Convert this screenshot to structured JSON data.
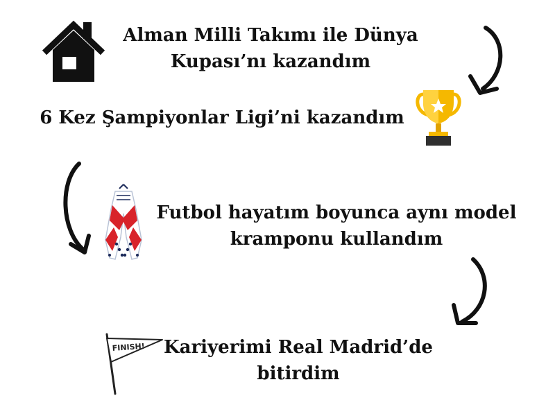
{
  "steps": [
    {
      "icon": "house-icon",
      "lines": [
        "Alman Milli Takımı ile Dünya",
        "Kupası’nı kazandım"
      ]
    },
    {
      "icon": "trophy-icon",
      "lines": [
        "6 Kez Şampiyonlar Ligi’ni kazandım"
      ]
    },
    {
      "icon": "football-boot-icon",
      "lines": [
        "Futbol hayatım boyunca aynı model",
        "kramponu kullandım"
      ]
    },
    {
      "icon": "finish-flag-icon",
      "lines": [
        "Kariyerimi Real Madrid’de",
        "bitirdim"
      ]
    }
  ],
  "flag_text": "FINISH!",
  "colors": {
    "text": "#111111",
    "trophy_gold": "#f5b800",
    "boot_red": "#d8232a",
    "boot_navy": "#1c2a5a"
  }
}
